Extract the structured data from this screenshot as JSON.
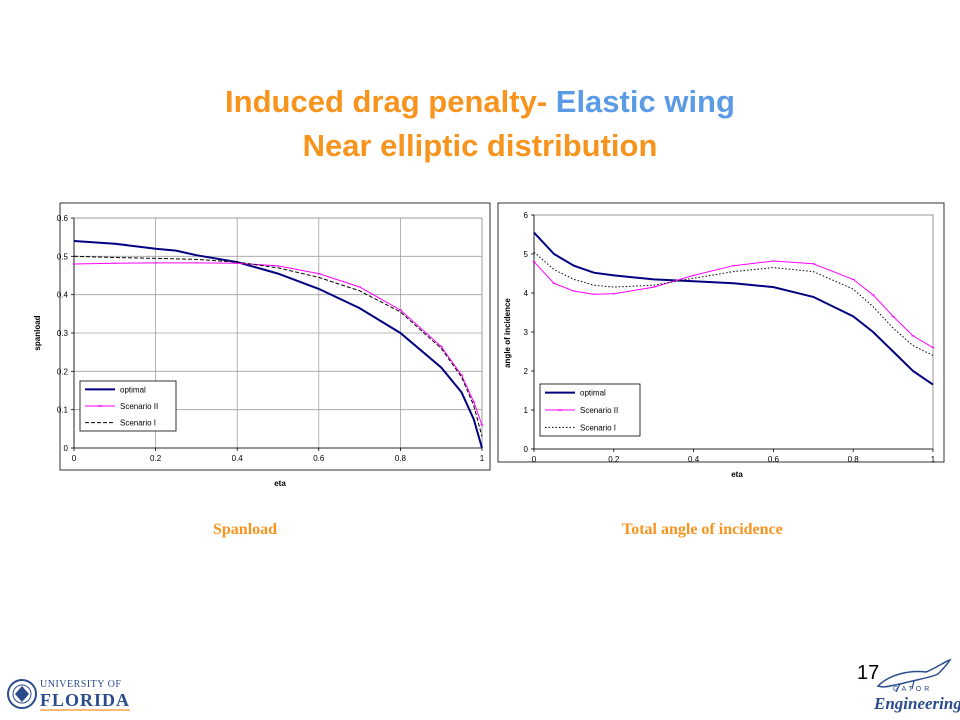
{
  "slide": {
    "title_part1": "Induced drag penalty- ",
    "title_part2": "Elastic wing",
    "title_line2": "Near elliptic distribution",
    "caption_left": "Spanload",
    "caption_right": "Total angle of incidence",
    "page_number": "17",
    "logo_left_line1": "UNIVERSITY OF",
    "logo_left_line2": "FLORIDA",
    "logo_right_sub": "GATOR",
    "logo_right_word": "Engineering",
    "colors": {
      "title": "#F7941D",
      "accent": "#5B9BE6",
      "optimal": "#000080",
      "scenario2": "#FF00FF",
      "scenario1": "#000000"
    }
  },
  "chart_data": [
    {
      "type": "line",
      "xlabel": "eta",
      "ylabel": "spanload",
      "xlim": [
        0,
        1
      ],
      "ylim": [
        0,
        0.6
      ],
      "xticks": [
        "0",
        "0.2",
        "0.4",
        "0.6",
        "0.8",
        "1"
      ],
      "yticks": [
        "0",
        "0.1",
        "0.2",
        "0.3",
        "0.4",
        "0.5",
        "0.6"
      ],
      "grid": true,
      "legend_position": "bottom-left",
      "series": [
        {
          "name": "optimal",
          "style": "solid-navy",
          "x": [
            0,
            0.1,
            0.2,
            0.25,
            0.3,
            0.4,
            0.5,
            0.6,
            0.7,
            0.8,
            0.9,
            0.95,
            0.98,
            1.0
          ],
          "y": [
            0.54,
            0.533,
            0.52,
            0.515,
            0.503,
            0.485,
            0.455,
            0.415,
            0.365,
            0.3,
            0.21,
            0.145,
            0.075,
            0.0
          ]
        },
        {
          "name": "Scenario II",
          "style": "magenta-markers",
          "x": [
            0,
            0.1,
            0.2,
            0.3,
            0.4,
            0.5,
            0.6,
            0.7,
            0.8,
            0.9,
            0.95,
            0.98,
            1.0
          ],
          "y": [
            0.48,
            0.482,
            0.483,
            0.483,
            0.482,
            0.475,
            0.455,
            0.42,
            0.36,
            0.265,
            0.19,
            0.12,
            0.06
          ]
        },
        {
          "name": "Scenario I",
          "style": "dashed-black",
          "x": [
            0,
            0.1,
            0.2,
            0.3,
            0.4,
            0.5,
            0.6,
            0.7,
            0.8,
            0.9,
            0.95,
            0.98,
            1.0
          ],
          "y": [
            0.5,
            0.497,
            0.495,
            0.492,
            0.485,
            0.47,
            0.445,
            0.41,
            0.355,
            0.26,
            0.185,
            0.11,
            0.03
          ]
        }
      ]
    },
    {
      "type": "line",
      "xlabel": "eta",
      "ylabel": "angle of incidence",
      "xlim": [
        0,
        1
      ],
      "ylim": [
        0,
        6
      ],
      "xticks": [
        "0",
        "0.2",
        "0.4",
        "0.6",
        "0.8",
        "1"
      ],
      "yticks": [
        "0",
        "1",
        "2",
        "3",
        "4",
        "5",
        "6"
      ],
      "grid": false,
      "legend_position": "bottom-left",
      "series": [
        {
          "name": "optimal",
          "style": "solid-navy",
          "x": [
            0,
            0.05,
            0.1,
            0.15,
            0.2,
            0.3,
            0.4,
            0.5,
            0.6,
            0.7,
            0.8,
            0.85,
            0.9,
            0.95,
            1.0
          ],
          "y": [
            5.55,
            5.0,
            4.7,
            4.52,
            4.45,
            4.35,
            4.3,
            4.25,
            4.15,
            3.9,
            3.4,
            3.0,
            2.5,
            2.0,
            1.65
          ]
        },
        {
          "name": "Scenario II",
          "style": "magenta-markers",
          "x": [
            0,
            0.05,
            0.1,
            0.15,
            0.2,
            0.3,
            0.4,
            0.5,
            0.6,
            0.7,
            0.8,
            0.85,
            0.9,
            0.95,
            1.0
          ],
          "y": [
            4.8,
            4.25,
            4.05,
            3.97,
            3.98,
            4.15,
            4.45,
            4.7,
            4.82,
            4.75,
            4.35,
            3.95,
            3.4,
            2.9,
            2.6
          ]
        },
        {
          "name": "Scenario I",
          "style": "dotted-black",
          "x": [
            0,
            0.05,
            0.1,
            0.15,
            0.2,
            0.3,
            0.4,
            0.5,
            0.6,
            0.7,
            0.8,
            0.85,
            0.9,
            0.95,
            1.0
          ],
          "y": [
            5.05,
            4.6,
            4.35,
            4.2,
            4.15,
            4.2,
            4.38,
            4.55,
            4.65,
            4.55,
            4.1,
            3.65,
            3.1,
            2.65,
            2.4
          ]
        }
      ]
    }
  ]
}
